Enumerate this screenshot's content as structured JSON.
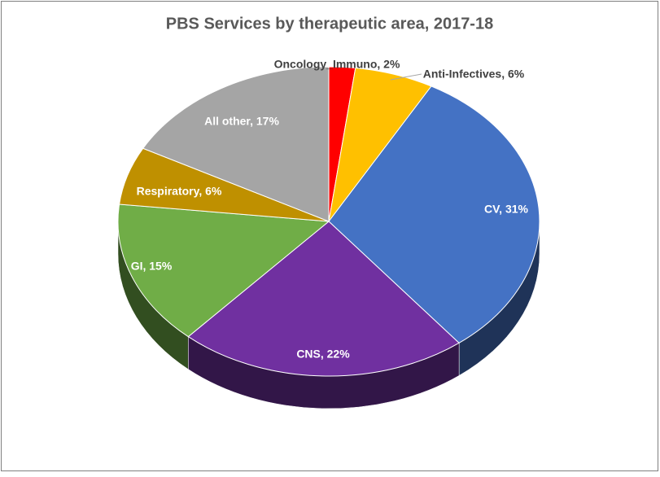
{
  "chart_data": {
    "type": "pie",
    "title": "PBS Services by therapeutic area, 2017-18",
    "values": [
      2,
      6,
      31,
      22,
      15,
      6,
      17
    ],
    "value_labels": [
      "Oncology_Immuno, 2%",
      "Anti-Infectives, 6%",
      "CV, 31%",
      "CNS, 22%",
      "GI, 15%",
      "Respiratory, 6%",
      "All other, 17%"
    ],
    "colors": [
      "#ff0000",
      "#ffc000",
      "#4472c4",
      "#7030a0",
      "#70ad47",
      "#bf9000",
      "#a5a5a5"
    ]
  }
}
